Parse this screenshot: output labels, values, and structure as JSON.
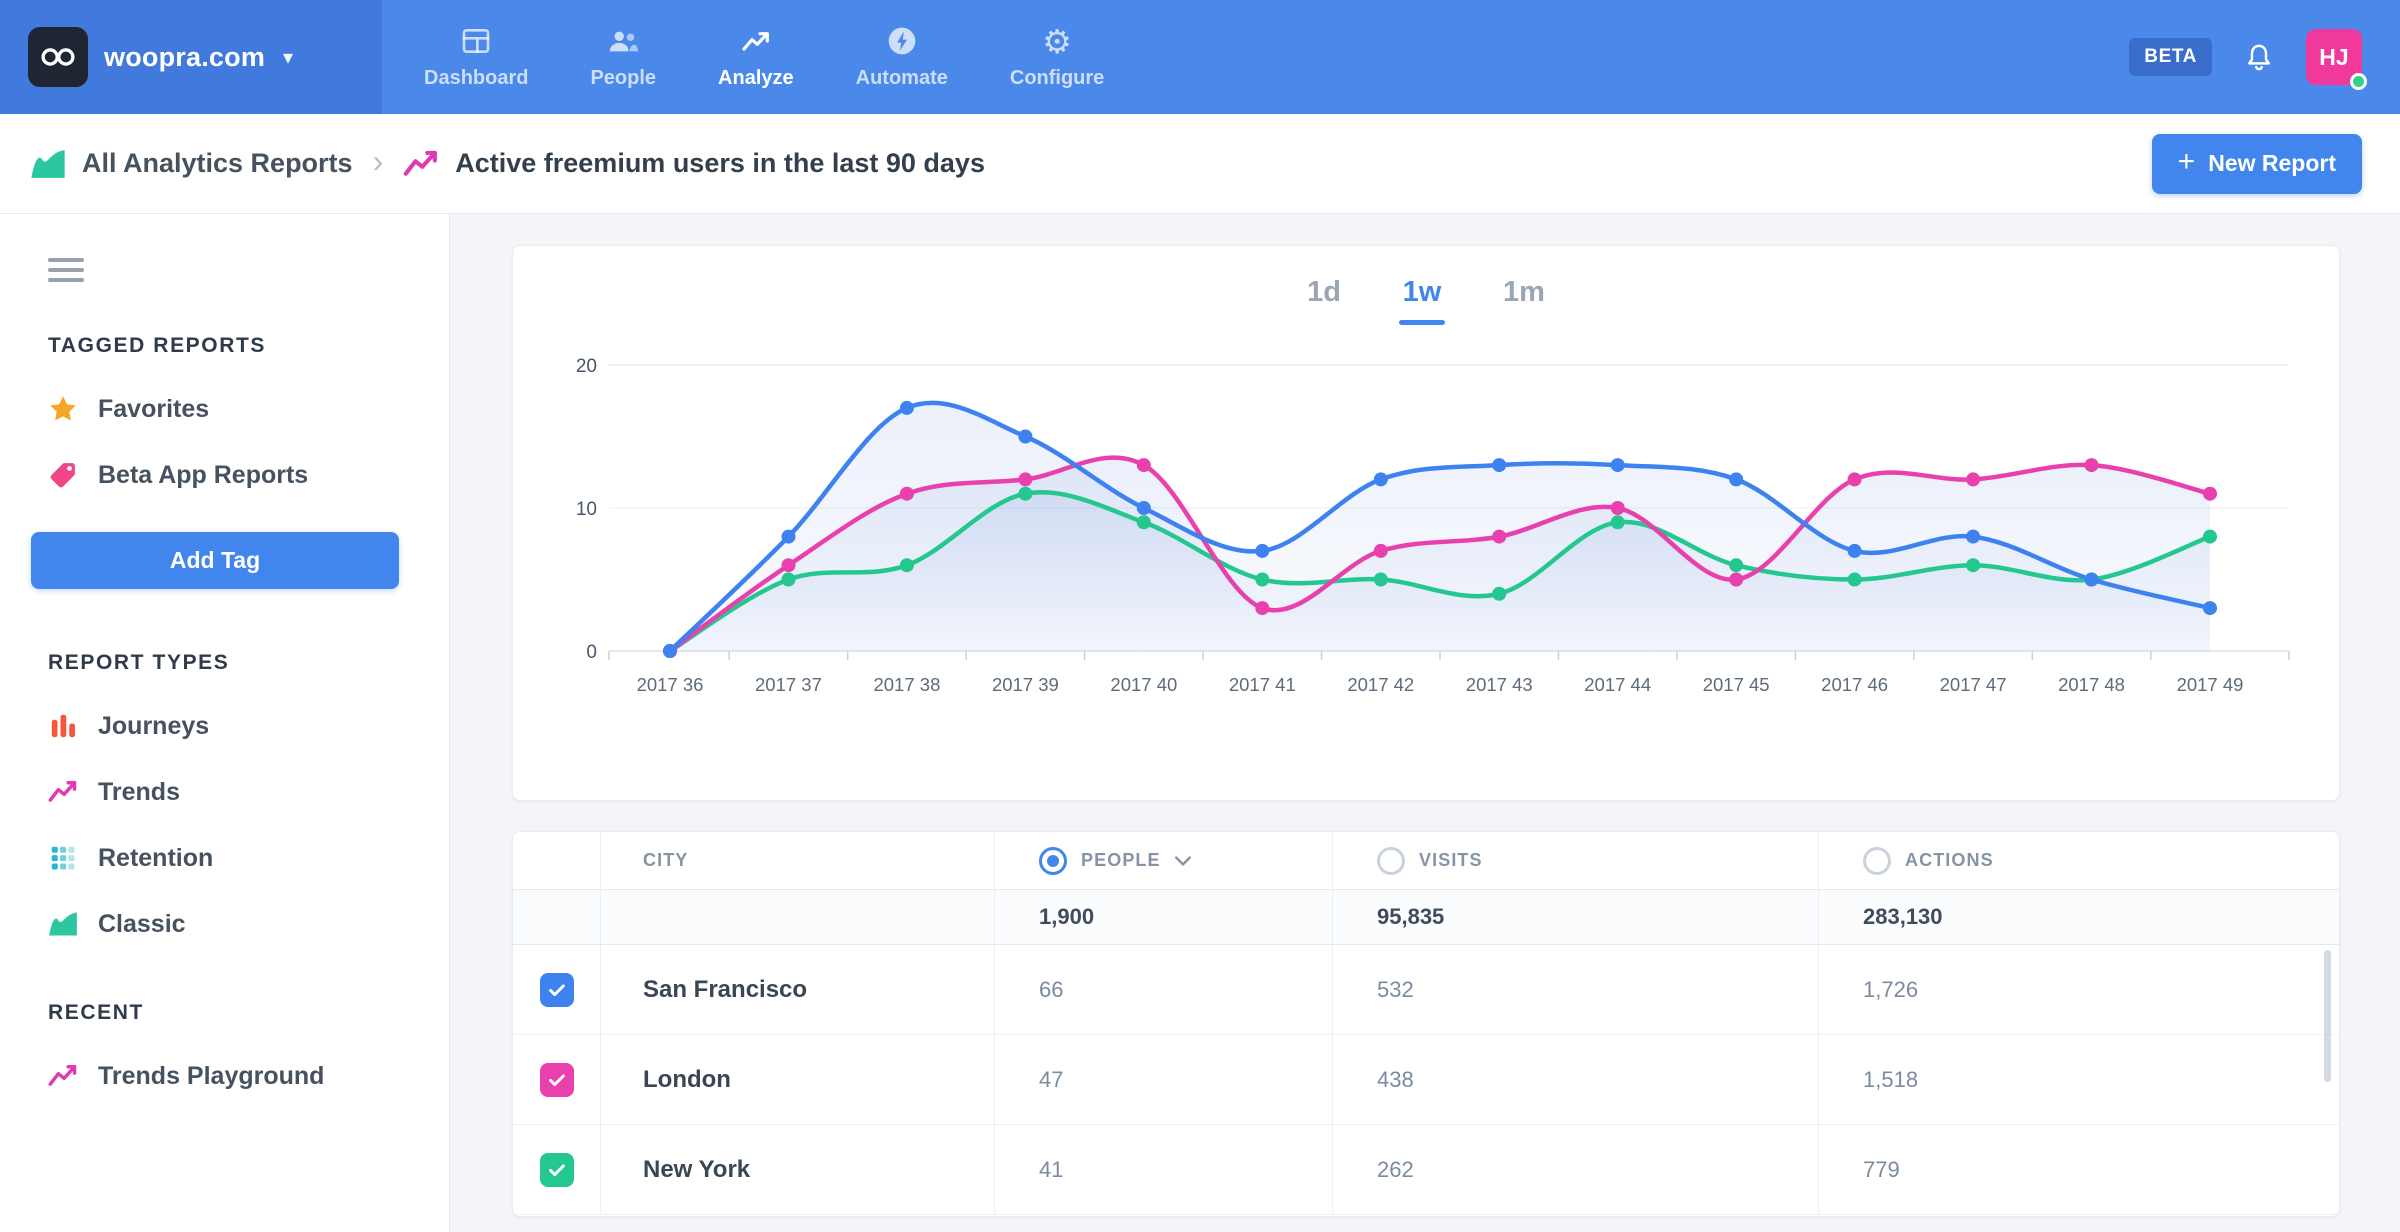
{
  "colors": {
    "navbar": "#4a88ea",
    "navbar_dark": "#4179dd",
    "logo_bg": "#1e2633",
    "accent": "#4285ec",
    "badge": "#3a6dcb",
    "avatar": "#f0399b",
    "online": "#35d08c",
    "page_bg": "#f3f5f8"
  },
  "navbar": {
    "site_name": "woopra.com",
    "caret": "▾",
    "items": [
      {
        "label": "Dashboard",
        "icon": "dashboard-icon",
        "active": false
      },
      {
        "label": "People",
        "icon": "people-icon",
        "active": false
      },
      {
        "label": "Analyze",
        "icon": "analyze-icon",
        "active": true
      },
      {
        "label": "Automate",
        "icon": "automate-icon",
        "active": false
      },
      {
        "label": "Configure",
        "icon": "configure-icon",
        "active": false
      }
    ],
    "beta_badge": "BETA",
    "avatar_initials": "HJ"
  },
  "breadcrumb": {
    "root_label": "All Analytics Reports",
    "separator": "›",
    "current_label": "Active freemium users in the last 90 days",
    "new_report": {
      "plus": "+",
      "label": "New Report"
    }
  },
  "sidebar": {
    "sections": [
      {
        "title": "TAGGED REPORTS"
      },
      {
        "title": "REPORT TYPES"
      },
      {
        "title": "RECENT"
      }
    ],
    "tagged_items": [
      {
        "label": "Favorites",
        "icon": "star-icon"
      },
      {
        "label": "Beta App Reports",
        "icon": "tag-icon"
      }
    ],
    "add_tag_label": "Add Tag",
    "report_types": [
      {
        "label": "Journeys",
        "icon": "journeys-icon"
      },
      {
        "label": "Trends",
        "icon": "trends-icon"
      },
      {
        "label": "Retention",
        "icon": "retention-icon"
      },
      {
        "label": "Classic",
        "icon": "classic-icon"
      }
    ],
    "recent_items": [
      {
        "label": "Trends Playground",
        "icon": "trends-icon"
      }
    ]
  },
  "chart_data": {
    "type": "line",
    "tabs": [
      {
        "label": "1d"
      },
      {
        "label": "1w"
      },
      {
        "label": "1m"
      }
    ],
    "active_tab": "1w",
    "categories": [
      "2017 36",
      "2017 37",
      "2017 38",
      "2017 39",
      "2017 40",
      "2017 41",
      "2017 42",
      "2017 43",
      "2017 44",
      "2017 45",
      "2017 46",
      "2017 47",
      "2017 48",
      "2017 49"
    ],
    "yticks": [
      0,
      10,
      20
    ],
    "ylim": [
      0,
      20
    ],
    "grid": true,
    "legend": "none",
    "series": [
      {
        "name": "San Francisco",
        "color": "#3e82f0",
        "values": [
          0,
          8,
          17,
          15,
          10,
          7,
          12,
          13,
          13,
          12,
          7,
          8,
          5,
          3
        ]
      },
      {
        "name": "London",
        "color": "#e841ae",
        "values": [
          0,
          6,
          11,
          12,
          13,
          3,
          7,
          8,
          10,
          5,
          12,
          12,
          13,
          11
        ]
      },
      {
        "name": "New York",
        "color": "#24c78e",
        "values": [
          0,
          5,
          6,
          11,
          9,
          5,
          5,
          4,
          9,
          6,
          5,
          6,
          5,
          8
        ]
      }
    ]
  },
  "table": {
    "headers": {
      "city": "CITY",
      "people": "PEOPLE",
      "visits": "VISITS",
      "actions": "ACTIONS"
    },
    "selected_metric": "PEOPLE",
    "totals": {
      "people": "1,900",
      "visits": "95,835",
      "actions": "283,130"
    },
    "rows": [
      {
        "checked": true,
        "color": "#3e82f0",
        "city": "San Francisco",
        "people": "66",
        "visits": "532",
        "actions": "1,726"
      },
      {
        "checked": true,
        "color": "#e841ae",
        "city": "London",
        "people": "47",
        "visits": "438",
        "actions": "1,518"
      },
      {
        "checked": true,
        "color": "#24c78e",
        "city": "New York",
        "people": "41",
        "visits": "262",
        "actions": "779"
      }
    ]
  }
}
